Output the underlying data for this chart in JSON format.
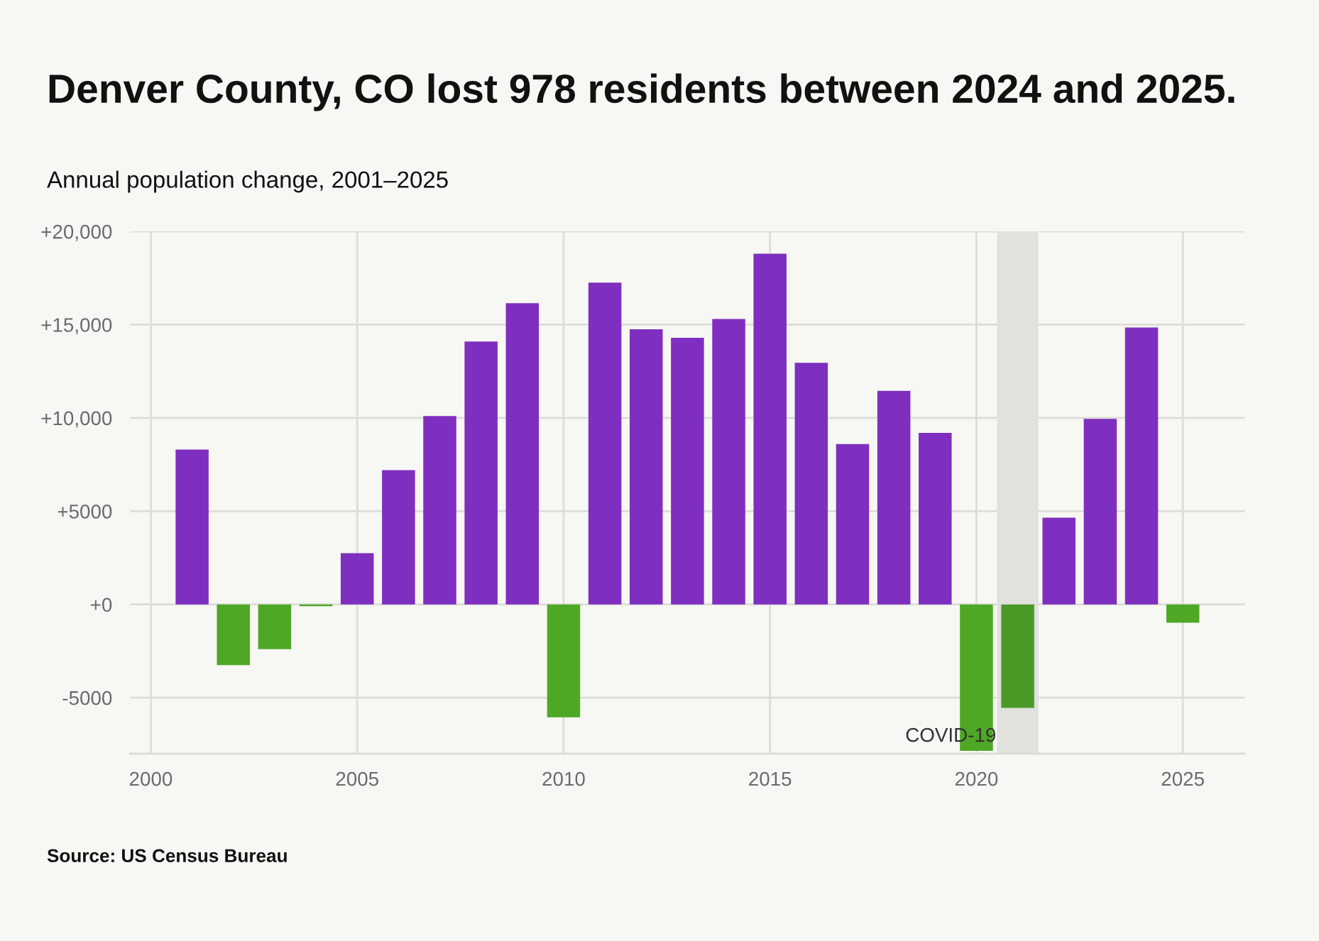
{
  "chart_data": {
    "type": "bar",
    "title": "Denver County, CO lost 978 residents between 2024 and 2025.",
    "subtitle": "Annual population change, 2001–2025",
    "annotations": [
      "Source: US Census Bureau"
    ],
    "x": [
      2001,
      2002,
      2003,
      2004,
      2005,
      2006,
      2007,
      2008,
      2009,
      2010,
      2011,
      2012,
      2013,
      2014,
      2015,
      2016,
      2017,
      2018,
      2019,
      2020,
      2021,
      2022,
      2023,
      2024,
      2025
    ],
    "values": [
      8300,
      -3250,
      -2400,
      -100,
      2750,
      7200,
      10100,
      14100,
      16150,
      -6050,
      17250,
      14750,
      14300,
      15300,
      18800,
      12950,
      8600,
      11450,
      9200,
      -7850,
      -5550,
      4650,
      9950,
      14850,
      -978
    ],
    "colors": [
      "#7e2fbf",
      "#4ea826",
      "#4ea826",
      "#4ea826",
      "#7e2fbf",
      "#7e2fbf",
      "#7e2fbf",
      "#7e2fbf",
      "#7e2fbf",
      "#4ea826",
      "#7e2fbf",
      "#7e2fbf",
      "#7e2fbf",
      "#7e2fbf",
      "#7e2fbf",
      "#7e2fbf",
      "#7e2fbf",
      "#7e2fbf",
      "#7e2fbf",
      "#4ea826",
      "#4b9a28",
      "#7e2fbf",
      "#7e2fbf",
      "#7e2fbf",
      "#4ea826"
    ],
    "xlim": [
      1999.5,
      2026.5
    ],
    "xticks": [
      2000,
      2005,
      2010,
      2015,
      2020,
      2025
    ],
    "ylim": [
      -8000,
      20000
    ],
    "yticks": [
      {
        "value": -5000,
        "label": "-5000"
      },
      {
        "value": 0,
        "label": "+0"
      },
      {
        "value": 5000,
        "label": "+5000"
      },
      {
        "value": 10000,
        "label": "+10,000"
      },
      {
        "value": 15000,
        "label": "+15,000"
      },
      {
        "value": 20000,
        "label": "+20,000"
      }
    ],
    "grid": true,
    "bands": [
      {
        "axis": "x",
        "from": 2020.5,
        "to": 2021.5,
        "label": "COVID-19",
        "color": "#e1e1dd"
      }
    ]
  }
}
